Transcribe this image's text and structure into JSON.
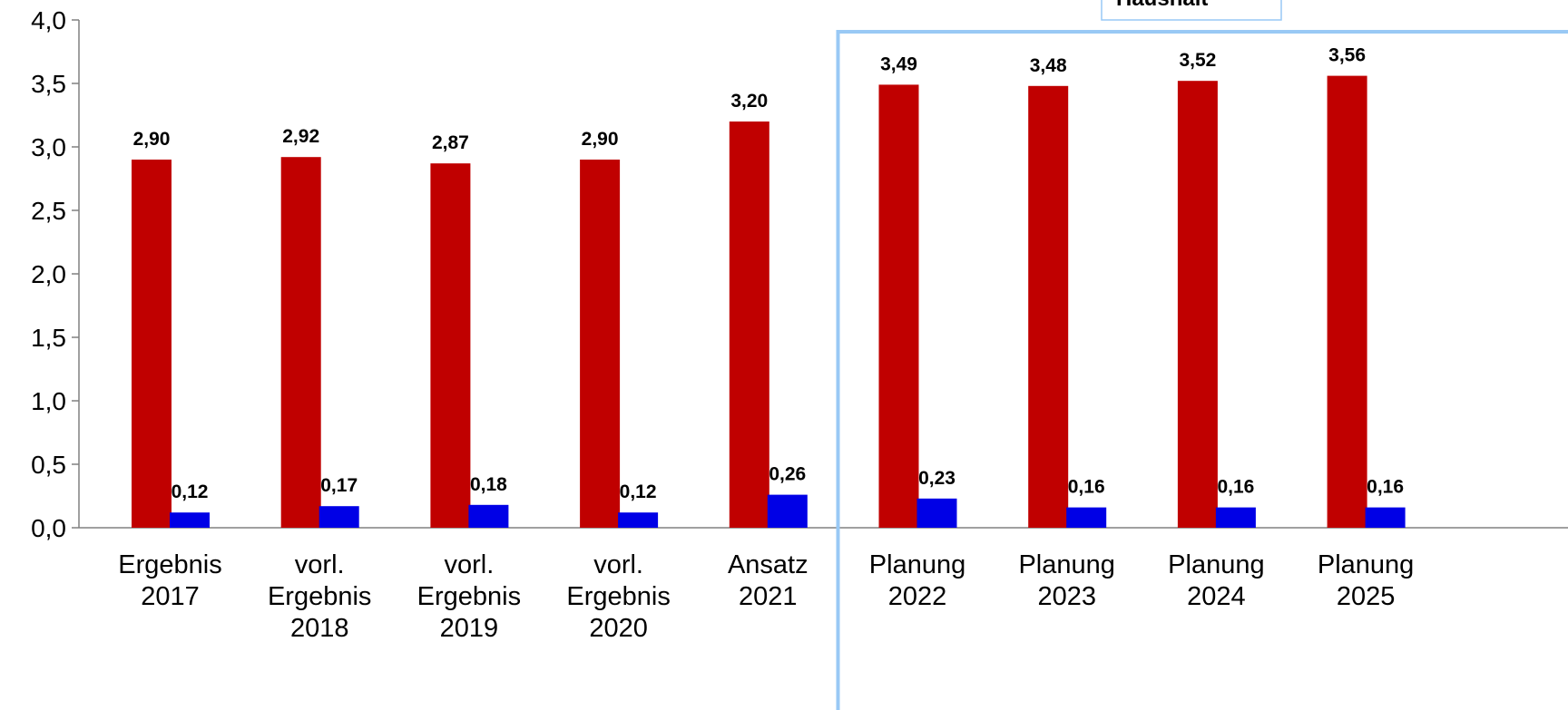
{
  "chart_data": {
    "type": "bar",
    "title": "",
    "xlabel": "",
    "ylabel": "",
    "ylim": [
      0,
      4
    ],
    "yticks": [
      "0,0",
      "0,5",
      "1,0",
      "1,5",
      "2,0",
      "2,5",
      "3,0",
      "3,5",
      "4,0"
    ],
    "grid": false,
    "categories": [
      [
        "Ergebnis",
        "2017"
      ],
      [
        "vorl.",
        "Ergebnis",
        "2018"
      ],
      [
        "vorl.",
        "Ergebnis",
        "2019"
      ],
      [
        "vorl.",
        "Ergebnis",
        "2020"
      ],
      [
        "Ansatz",
        "2021"
      ],
      [
        "Planung",
        "2022"
      ],
      [
        "Planung",
        "2023"
      ],
      [
        "Planung",
        "2024"
      ],
      [
        "Planung",
        "2025"
      ]
    ],
    "series": [
      {
        "color": "#c00000",
        "values": [
          2.9,
          2.92,
          2.87,
          2.9,
          3.2,
          3.49,
          3.48,
          3.52,
          3.56
        ],
        "labels": [
          "2,90",
          "2,92",
          "2,87",
          "2,90",
          "3,20",
          "3,49",
          "3,48",
          "3,52",
          "3,56"
        ]
      },
      {
        "color": "#0000e6",
        "values": [
          0.12,
          0.17,
          0.18,
          0.12,
          0.26,
          0.23,
          0.16,
          0.16,
          0.16
        ],
        "labels": [
          "0,12",
          "0,17",
          "0,18",
          "0,12",
          "0,26",
          "0,23",
          "0,16",
          "0,16",
          "0,16"
        ]
      }
    ],
    "annotation_box": {
      "text": "Haushalt",
      "color": "#99c9f5",
      "covers_categories_from": 5
    }
  }
}
